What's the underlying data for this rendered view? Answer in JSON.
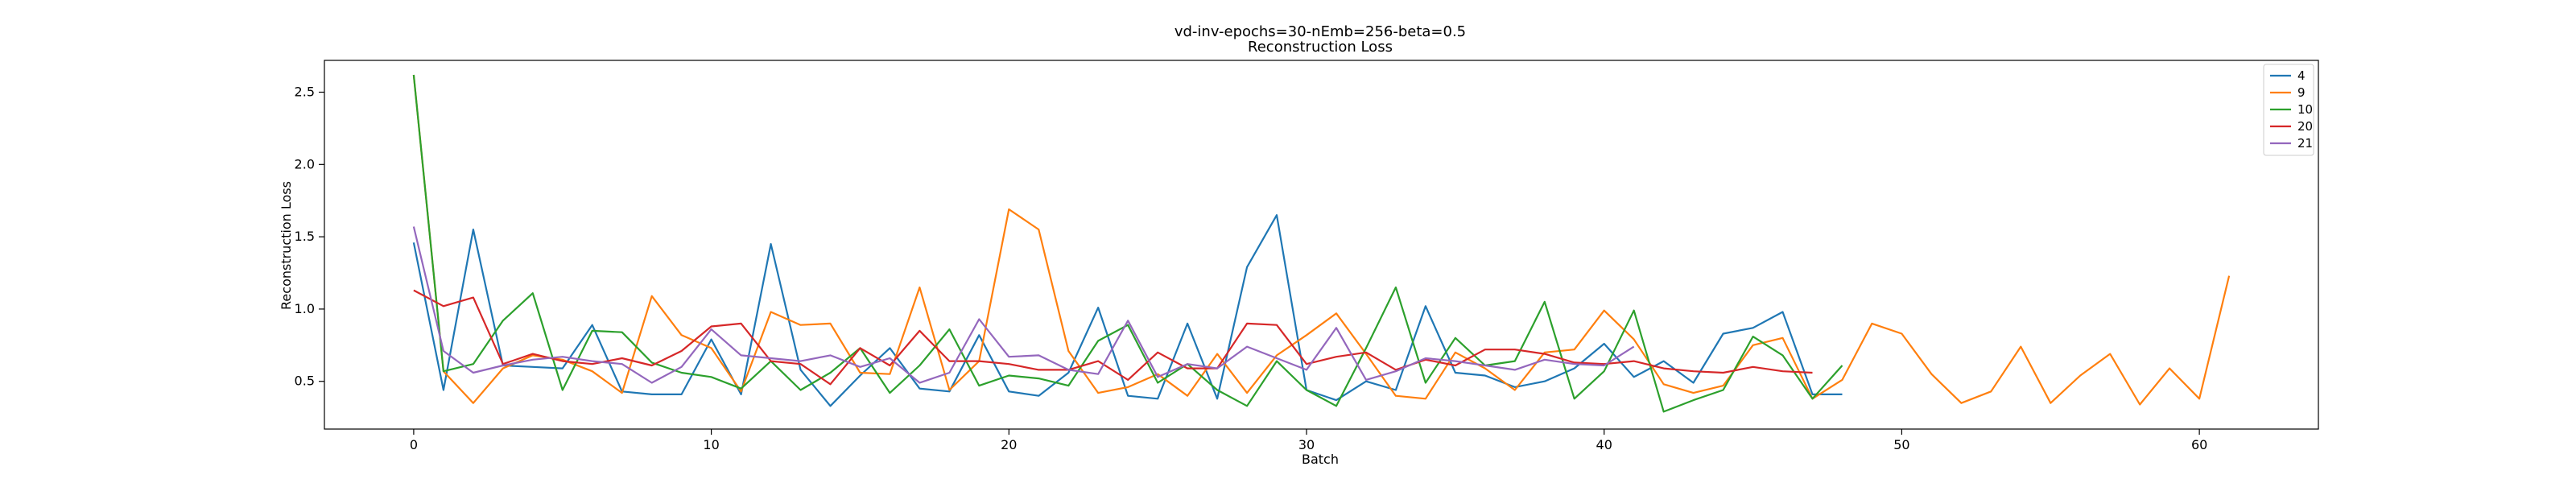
{
  "chart_data": {
    "type": "line",
    "title": "vd-inv-epochs=30-nEmb=256-beta=0.5",
    "subtitle": "Reconstruction Loss",
    "xlabel": "Batch",
    "ylabel": "Reconstruction Loss",
    "xlim": [
      -3,
      64
    ],
    "ylim": [
      0.17,
      2.72
    ],
    "xticks": [
      0,
      10,
      20,
      30,
      40,
      50,
      60
    ],
    "yticks": [
      0.5,
      1.0,
      1.5,
      2.0,
      2.5
    ],
    "ytick_labels": [
      "0.5",
      "1.0",
      "1.5",
      "2.0",
      "2.5"
    ],
    "grid": false,
    "legend_position": "top-right",
    "series": [
      {
        "name": "4",
        "color": "#1f77b4",
        "values": [
          1.46,
          0.44,
          1.55,
          0.61,
          0.6,
          0.59,
          0.89,
          0.43,
          0.41,
          0.41,
          0.79,
          0.41,
          1.45,
          0.58,
          0.33,
          0.54,
          0.73,
          0.45,
          0.43,
          0.82,
          0.43,
          0.4,
          0.56,
          1.01,
          0.4,
          0.38,
          0.9,
          0.38,
          1.29,
          1.65,
          0.44,
          0.37,
          0.5,
          0.44,
          1.02,
          0.56,
          0.54,
          0.46,
          0.5,
          0.59,
          0.76,
          0.53,
          0.64,
          0.49,
          0.83,
          0.87,
          0.98,
          0.41,
          0.41
        ]
      },
      {
        "name": "9",
        "color": "#ff7f0e",
        "values": [
          2.62,
          0.57,
          0.35,
          0.59,
          0.68,
          0.65,
          0.57,
          0.42,
          1.09,
          0.82,
          0.73,
          0.43,
          0.98,
          0.89,
          0.9,
          0.56,
          0.55,
          1.15,
          0.44,
          0.64,
          1.69,
          1.55,
          0.71,
          0.42,
          0.46,
          0.55,
          0.4,
          0.69,
          0.42,
          0.68,
          0.82,
          0.97,
          0.69,
          0.4,
          0.38,
          0.7,
          0.59,
          0.44,
          0.7,
          0.72,
          0.99,
          0.79,
          0.48,
          0.42,
          0.47,
          0.75,
          0.8,
          0.38,
          0.51,
          0.9,
          0.83,
          0.55,
          0.35,
          0.43,
          0.74,
          0.35,
          0.54,
          0.69,
          0.34,
          0.59,
          0.38,
          1.23
        ]
      },
      {
        "name": "10",
        "color": "#2ca02c",
        "values": [
          2.62,
          0.57,
          0.62,
          0.92,
          1.11,
          0.44,
          0.85,
          0.84,
          0.63,
          0.56,
          0.53,
          0.45,
          0.64,
          0.44,
          0.56,
          0.73,
          0.42,
          0.61,
          0.86,
          0.47,
          0.54,
          0.52,
          0.47,
          0.78,
          0.89,
          0.49,
          0.62,
          0.44,
          0.33,
          0.64,
          0.44,
          0.33,
          0.73,
          1.15,
          0.49,
          0.8,
          0.61,
          0.64,
          1.05,
          0.38,
          0.57,
          0.99,
          0.29,
          0.37,
          0.44,
          0.81,
          0.68,
          0.38,
          0.61
        ]
      },
      {
        "name": "20",
        "color": "#d62728",
        "values": [
          1.13,
          1.02,
          1.08,
          0.62,
          0.69,
          0.64,
          0.62,
          0.66,
          0.61,
          0.71,
          0.88,
          0.9,
          0.64,
          0.62,
          0.48,
          0.73,
          0.61,
          0.85,
          0.64,
          0.64,
          0.62,
          0.58,
          0.58,
          0.64,
          0.51,
          0.7,
          0.59,
          0.59,
          0.9,
          0.89,
          0.62,
          0.67,
          0.7,
          0.58,
          0.65,
          0.61,
          0.72,
          0.72,
          0.69,
          0.63,
          0.62,
          0.64,
          0.59,
          0.57,
          0.56,
          0.6,
          0.57,
          0.56
        ]
      },
      {
        "name": "21",
        "color": "#9467bd",
        "values": [
          1.57,
          0.71,
          0.56,
          0.61,
          0.65,
          0.67,
          0.64,
          0.62,
          0.49,
          0.6,
          0.86,
          0.68,
          0.66,
          0.64,
          0.68,
          0.6,
          0.66,
          0.49,
          0.56,
          0.93,
          0.67,
          0.68,
          0.58,
          0.55,
          0.92,
          0.53,
          0.62,
          0.59,
          0.74,
          0.66,
          0.58,
          0.87,
          0.51,
          0.57,
          0.66,
          0.64,
          0.61,
          0.58,
          0.65,
          0.62,
          0.61,
          0.74
        ]
      }
    ]
  }
}
